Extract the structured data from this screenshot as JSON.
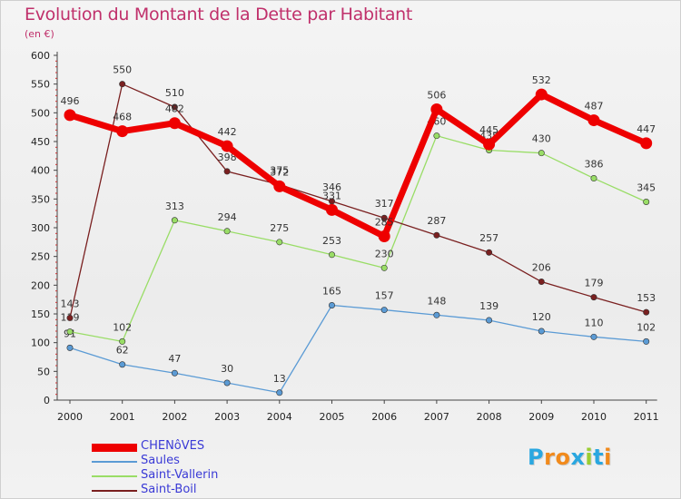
{
  "header": {
    "title": "Evolution du Montant de la Dette par Habitant",
    "subtitle": "(en €)"
  },
  "logo": {
    "text": "Proxiti",
    "letter_colors": [
      "#2aa7e0",
      "#f18a1c",
      "#f18a1c",
      "#2aa7e0",
      "#9acd32",
      "#2aa7e0",
      "#f18a1c"
    ]
  },
  "chart_data": {
    "type": "line",
    "title": "Evolution du Montant de la Dette par Habitant",
    "subtitle": "(en €)",
    "xlabel": "",
    "ylabel": "",
    "x": [
      "2000",
      "2001",
      "2002",
      "2003",
      "2004",
      "2005",
      "2006",
      "2007",
      "2008",
      "2009",
      "2010",
      "2011"
    ],
    "ylim": [
      0,
      600
    ],
    "yticks": [
      0,
      50,
      100,
      150,
      200,
      250,
      300,
      350,
      400,
      450,
      500,
      550,
      600
    ],
    "grid": false,
    "legend_position": "bottom-left",
    "series": [
      {
        "name": "CHENôVES",
        "color": "#ee0000",
        "emphasis": "thick",
        "values": [
          496,
          468,
          482,
          442,
          372,
          331,
          285,
          506,
          445,
          532,
          487,
          447
        ],
        "labels": [
          "496",
          "468",
          "482",
          "442",
          "372",
          "331",
          "285",
          "506",
          "445",
          "532",
          "487",
          "447"
        ]
      },
      {
        "name": "Saules",
        "color": "#5b9bd5",
        "emphasis": "thin",
        "values": [
          91,
          62,
          47,
          30,
          13,
          165,
          157,
          148,
          139,
          120,
          110,
          102
        ],
        "labels": [
          "91",
          "62",
          "47",
          "30",
          "13",
          "165",
          "157",
          "148",
          "139",
          "120",
          "110",
          "102"
        ]
      },
      {
        "name": "Saint-Vallerin",
        "color": "#99dd66",
        "emphasis": "thin",
        "values": [
          119,
          102,
          313,
          294,
          275,
          253,
          230,
          460,
          435,
          430,
          386,
          345
        ],
        "labels": [
          "119",
          "102",
          "313",
          "294",
          "275",
          "253",
          "230",
          "460",
          "435",
          "430",
          "386",
          "345"
        ]
      },
      {
        "name": "Saint-Boil",
        "color": "#7a2020",
        "emphasis": "thin",
        "values": [
          143,
          550,
          510,
          398,
          375,
          346,
          317,
          287,
          257,
          206,
          179,
          153
        ],
        "labels": [
          "143",
          "550",
          "510",
          "398",
          "375",
          "346",
          "317",
          "287",
          "257",
          "206",
          "179",
          "153"
        ]
      }
    ]
  }
}
